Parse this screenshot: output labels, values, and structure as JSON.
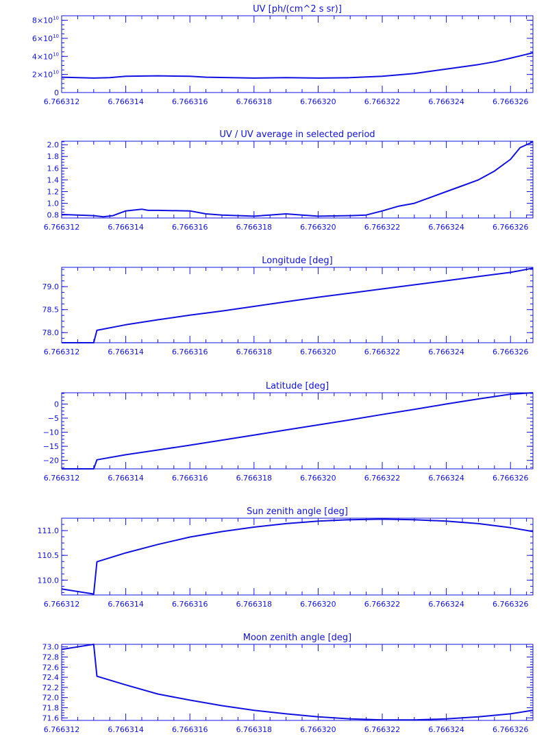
{
  "x_ticks": [
    "6.766312",
    "6.766314",
    "6.766316",
    "6.766318",
    "6.766320",
    "6.766322",
    "6.766324",
    "6.766326"
  ],
  "chart_data": [
    {
      "type": "line",
      "title": "UV [ph/(cm^2 s sr)]",
      "xlim": [
        6.766312,
        6.7663267
      ],
      "ylim": [
        0,
        85000000000.0
      ],
      "y_ticks": [
        0,
        20000000000.0,
        40000000000.0,
        60000000000.0,
        80000000000.0
      ],
      "y_tick_labels": [
        {
          "mant": "0",
          "exp": ""
        },
        {
          "mant": "2×10",
          "exp": "10"
        },
        {
          "mant": "4×10",
          "exp": "10"
        },
        {
          "mant": "6×10",
          "exp": "10"
        },
        {
          "mant": "8×10",
          "exp": "10"
        }
      ],
      "series": [
        {
          "x": [
            6.766312,
            6.766313,
            6.7663135,
            6.766314,
            6.766315,
            6.766316,
            6.7663165,
            6.766318,
            6.766319,
            6.76632,
            6.766321,
            6.766322,
            6.766323,
            6.766324,
            6.766325,
            6.7663255,
            6.766326,
            6.7663267
          ],
          "y": [
            17000000000.0,
            16000000000.0,
            16500000000.0,
            18000000000.0,
            18500000000.0,
            18000000000.0,
            17000000000.0,
            16000000000.0,
            16500000000.0,
            16000000000.0,
            16500000000.0,
            18000000000.0,
            21000000000.0,
            26000000000.0,
            31000000000.0,
            34000000000.0,
            38000000000.0,
            44000000000.0
          ]
        }
      ]
    },
    {
      "type": "line",
      "title": "UV / UV average in selected period",
      "xlim": [
        6.766312,
        6.7663267
      ],
      "ylim": [
        0.75,
        2.06
      ],
      "y_ticks": [
        0.8,
        1.0,
        1.2,
        1.4,
        1.6,
        1.8,
        2.0
      ],
      "y_tick_labels": [
        {
          "mant": "0.8",
          "exp": ""
        },
        {
          "mant": "1.0",
          "exp": ""
        },
        {
          "mant": "1.2",
          "exp": ""
        },
        {
          "mant": "1.4",
          "exp": ""
        },
        {
          "mant": "1.6",
          "exp": ""
        },
        {
          "mant": "1.8",
          "exp": ""
        },
        {
          "mant": "2.0",
          "exp": ""
        }
      ],
      "series": [
        {
          "x": [
            6.766312,
            6.7663125,
            6.766313,
            6.7663133,
            6.7663136,
            6.766314,
            6.7663145,
            6.7663147,
            6.766315,
            6.766316,
            6.7663165,
            6.766317,
            6.766318,
            6.766319,
            6.7663195,
            6.76632,
            6.766321,
            6.7663215,
            6.766322,
            6.7663225,
            6.766323,
            6.7663235,
            6.766324,
            6.7663245,
            6.766325,
            6.7663255,
            6.766326,
            6.7663263,
            6.7663267
          ],
          "y": [
            0.81,
            0.8,
            0.79,
            0.77,
            0.79,
            0.87,
            0.9,
            0.88,
            0.88,
            0.87,
            0.82,
            0.8,
            0.78,
            0.82,
            0.8,
            0.78,
            0.79,
            0.8,
            0.87,
            0.95,
            1.0,
            1.1,
            1.2,
            1.3,
            1.4,
            1.55,
            1.75,
            1.95,
            2.05
          ]
        }
      ]
    },
    {
      "type": "line",
      "title": "Longitude [deg]",
      "xlim": [
        6.766312,
        6.7663267
      ],
      "ylim": [
        77.78,
        79.42
      ],
      "y_ticks": [
        78.0,
        78.5,
        79.0
      ],
      "y_tick_labels": [
        {
          "mant": "78.0",
          "exp": ""
        },
        {
          "mant": "78.5",
          "exp": ""
        },
        {
          "mant": "79.0",
          "exp": ""
        }
      ],
      "series": [
        {
          "x": [
            6.766312,
            6.766312,
            6.766313,
            6.7663131,
            6.766314,
            6.766315,
            6.766316,
            6.766317,
            6.766318,
            6.766319,
            6.76632,
            6.766321,
            6.766322,
            6.766323,
            6.766324,
            6.766325,
            6.766326,
            6.7663267
          ],
          "y": [
            77.78,
            77.78,
            77.78,
            78.05,
            78.17,
            78.28,
            78.38,
            78.47,
            78.57,
            78.67,
            78.77,
            78.86,
            78.95,
            79.04,
            79.13,
            79.22,
            79.31,
            79.4
          ]
        }
      ]
    },
    {
      "type": "line",
      "title": "Latitude [deg]",
      "xlim": [
        6.766312,
        6.7663267
      ],
      "ylim": [
        -23,
        4
      ],
      "y_ticks": [
        -20,
        -15,
        -10,
        -5,
        0
      ],
      "y_tick_labels": [
        {
          "mant": "−20",
          "exp": ""
        },
        {
          "mant": "−15",
          "exp": ""
        },
        {
          "mant": "−10",
          "exp": ""
        },
        {
          "mant": "−5",
          "exp": ""
        },
        {
          "mant": "0",
          "exp": ""
        }
      ],
      "series": [
        {
          "x": [
            6.766312,
            6.766313,
            6.7663131,
            6.766314,
            6.766315,
            6.766316,
            6.766317,
            6.766318,
            6.766319,
            6.76632,
            6.766321,
            6.766322,
            6.766323,
            6.766324,
            6.766325,
            6.766326,
            6.7663267
          ],
          "y": [
            -23,
            -23,
            -19.8,
            -18,
            -16.3,
            -14.6,
            -12.8,
            -11.0,
            -9.2,
            -7.4,
            -5.6,
            -3.7,
            -1.9,
            0,
            1.8,
            3.5,
            4
          ]
        }
      ]
    },
    {
      "type": "line",
      "title": "Sun zenith angle [deg]",
      "xlim": [
        6.766312,
        6.7663267
      ],
      "ylim": [
        109.7,
        111.25
      ],
      "y_ticks": [
        110.0,
        110.5,
        111.0
      ],
      "y_tick_labels": [
        {
          "mant": "110.0",
          "exp": ""
        },
        {
          "mant": "110.5",
          "exp": ""
        },
        {
          "mant": "111.0",
          "exp": ""
        }
      ],
      "series": [
        {
          "x": [
            6.766312,
            6.766313,
            6.7663131,
            6.766314,
            6.766315,
            6.766316,
            6.766317,
            6.766318,
            6.766319,
            6.76632,
            6.766321,
            6.766322,
            6.766323,
            6.766324,
            6.766325,
            6.766326,
            6.7663267
          ],
          "y": [
            109.82,
            109.72,
            110.37,
            110.55,
            110.72,
            110.87,
            110.98,
            111.07,
            111.14,
            111.19,
            111.22,
            111.23,
            111.22,
            111.19,
            111.14,
            111.06,
            110.98
          ]
        }
      ]
    },
    {
      "type": "line",
      "title": "Moon zenith angle [deg]",
      "xlim": [
        6.766312,
        6.7663267
      ],
      "ylim": [
        71.55,
        73.05
      ],
      "y_ticks": [
        71.6,
        71.8,
        72.0,
        72.2,
        72.4,
        72.6,
        72.8,
        73.0
      ],
      "y_tick_labels": [
        {
          "mant": "71.6",
          "exp": ""
        },
        {
          "mant": "71.8",
          "exp": ""
        },
        {
          "mant": "72.0",
          "exp": ""
        },
        {
          "mant": "72.2",
          "exp": ""
        },
        {
          "mant": "72.4",
          "exp": ""
        },
        {
          "mant": "72.6",
          "exp": ""
        },
        {
          "mant": "72.8",
          "exp": ""
        },
        {
          "mant": "73.0",
          "exp": ""
        }
      ],
      "series": [
        {
          "x": [
            6.766312,
            6.766313,
            6.7663131,
            6.766314,
            6.766315,
            6.766316,
            6.766317,
            6.766318,
            6.766319,
            6.76632,
            6.766321,
            6.766322,
            6.766323,
            6.766324,
            6.766325,
            6.766326,
            6.7663267
          ],
          "y": [
            72.95,
            73.05,
            72.42,
            72.25,
            72.07,
            71.95,
            71.84,
            71.75,
            71.68,
            71.62,
            71.58,
            71.56,
            71.56,
            71.58,
            71.62,
            71.68,
            71.75
          ]
        }
      ]
    }
  ]
}
